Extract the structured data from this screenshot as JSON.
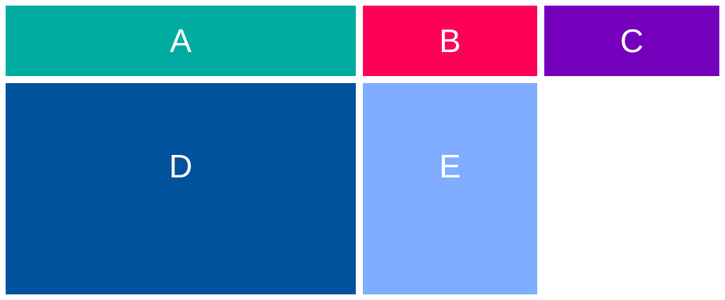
{
  "cells": [
    {
      "id": "cell-a",
      "label": "A",
      "color": "#00ac9f"
    },
    {
      "id": "cell-b",
      "label": "B",
      "color": "#ff0058"
    },
    {
      "id": "cell-c",
      "label": "C",
      "color": "#7500bc"
    },
    {
      "id": "cell-d",
      "label": "D",
      "color": "#00529d"
    },
    {
      "id": "cell-e",
      "label": "E",
      "color": "#80adff"
    }
  ]
}
